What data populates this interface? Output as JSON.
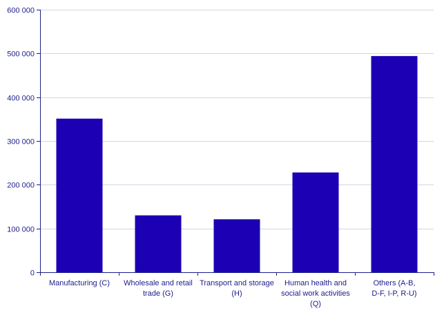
{
  "chart_data": {
    "type": "bar",
    "categories": [
      [
        "Manufacturing (C)"
      ],
      [
        "Wholesale and retail",
        "trade (G)"
      ],
      [
        "Transport and storage",
        "(H)"
      ],
      [
        "Human health and",
        "social work activities",
        "(Q)"
      ],
      [
        "Others (A-B,",
        "D-F, I-P, R-U)"
      ]
    ],
    "values": [
      351000,
      130000,
      121000,
      228000,
      494000
    ],
    "yticks": [
      0,
      100000,
      200000,
      300000,
      400000,
      500000,
      600000
    ],
    "ytick_labels": [
      "0",
      "100 000",
      "200 000",
      "300 000",
      "400 000",
      "500 000",
      "600 000"
    ],
    "ylim": [
      0,
      600000
    ],
    "grid": true,
    "colors": {
      "bar": "#1c00b4",
      "text": "#1c1c8c",
      "grid": "#d4d4e4"
    }
  }
}
